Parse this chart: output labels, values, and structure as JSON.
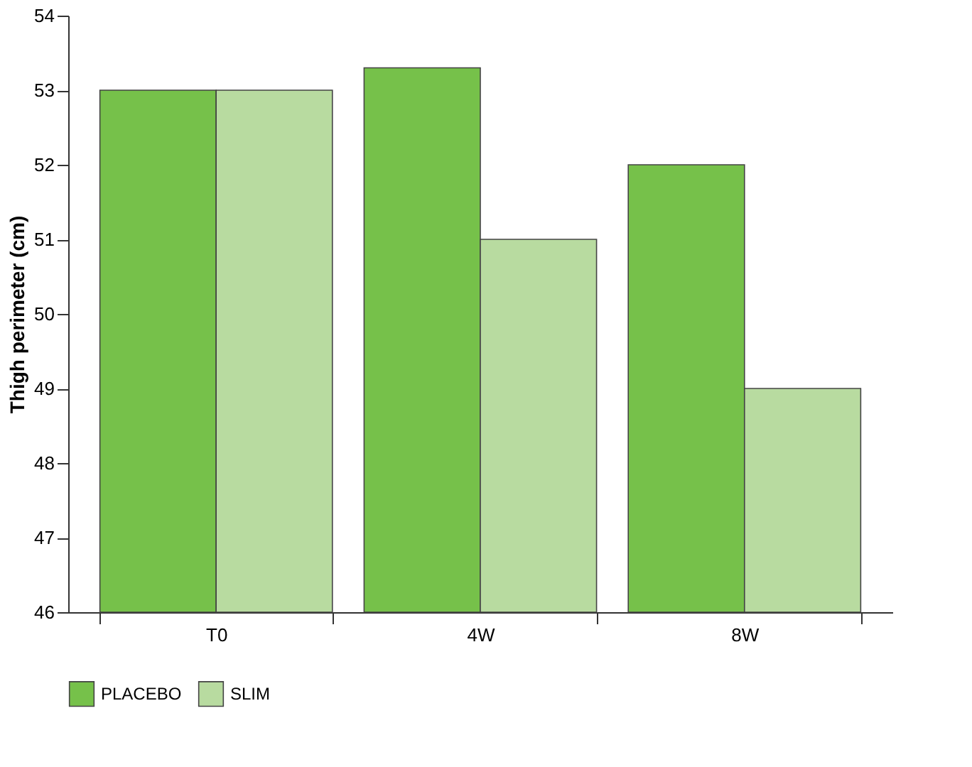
{
  "chart_data": {
    "type": "bar",
    "ylabel": "Thigh perimeter (cm)",
    "categories": [
      "T0",
      "4W",
      "8W"
    ],
    "series": [
      {
        "name": "PLACEBO",
        "color": "#76c14a",
        "values": [
          53,
          53.3,
          52
        ]
      },
      {
        "name": "SLIM",
        "color": "#b8dba0",
        "values": [
          53,
          51,
          49
        ]
      }
    ],
    "ylim": [
      46,
      54
    ],
    "yticks": [
      46,
      47,
      48,
      49,
      50,
      51,
      52,
      53,
      54
    ],
    "grid": false,
    "legend": "bottom left"
  }
}
